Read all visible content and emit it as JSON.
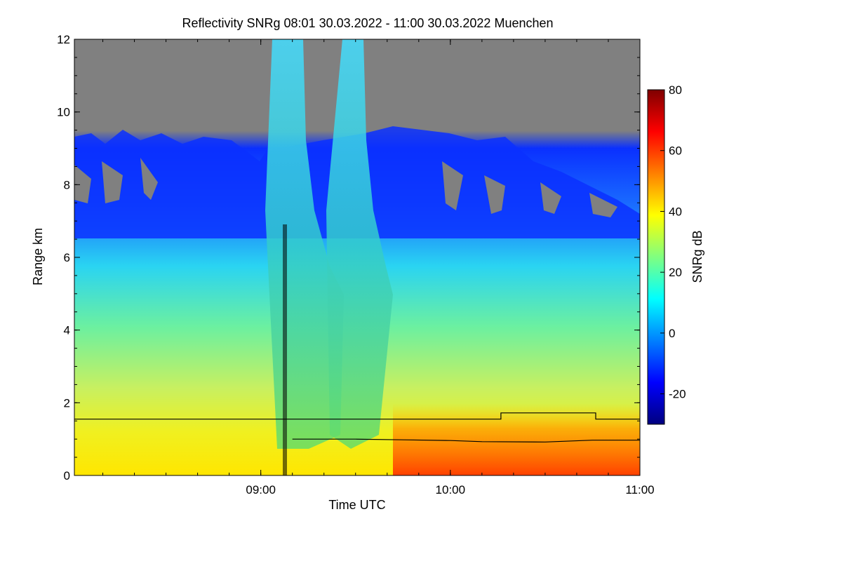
{
  "chart_data": {
    "type": "heatmap",
    "title": "Reflectivity SNRg   08:01 30.03.2022 - 11:00 30.03.2022 Muenchen",
    "xlabel": "Time UTC",
    "ylabel": "Range km",
    "xlim": [
      "08:01",
      "11:00"
    ],
    "ylim": [
      0,
      12
    ],
    "x_ticks": [
      "09:00",
      "10:00",
      "11:00"
    ],
    "y_ticks": [
      0,
      2,
      4,
      6,
      8,
      10,
      12
    ],
    "colorbar": {
      "label": "SNRg dB",
      "range": [
        -30,
        80
      ],
      "ticks": [
        -20,
        0,
        20,
        40,
        60,
        80
      ],
      "colors": [
        "#00007f",
        "#0000ff",
        "#0080ff",
        "#00ffff",
        "#80ff80",
        "#ffff00",
        "#ff8000",
        "#ff0000",
        "#7f0000"
      ]
    },
    "no_signal_color": "#808080",
    "overlay_lines": [
      {
        "points": [
          [
            "08:01",
            1.55
          ],
          [
            "09:06",
            1.55
          ],
          [
            "09:08",
            1.55
          ],
          [
            "10:16",
            1.55
          ],
          [
            "10:16",
            1.72
          ],
          [
            "10:46",
            1.72
          ],
          [
            "10:46",
            1.55
          ],
          [
            "11:00",
            1.55
          ]
        ]
      },
      {
        "points": [
          [
            "09:10",
            1.0
          ],
          [
            "09:30",
            1.0
          ],
          [
            "09:45",
            0.98
          ],
          [
            "10:00",
            0.96
          ],
          [
            "10:10",
            0.93
          ],
          [
            "10:30",
            0.92
          ],
          [
            "10:45",
            0.97
          ],
          [
            "11:00",
            0.97
          ]
        ]
      }
    ]
  }
}
